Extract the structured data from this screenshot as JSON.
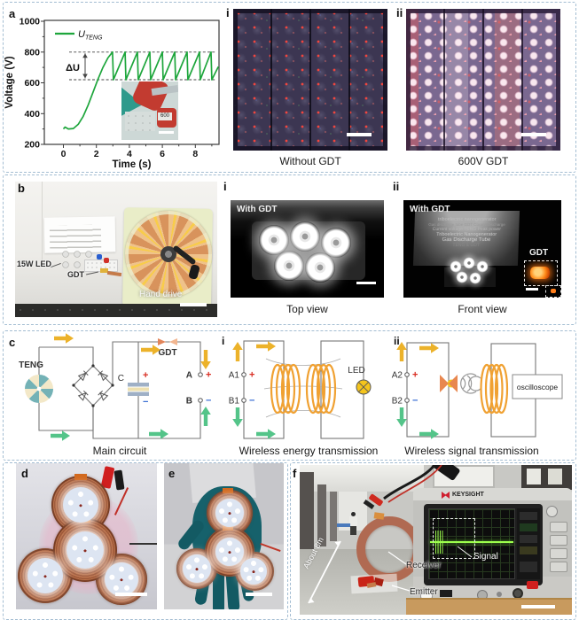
{
  "colors": {
    "section_border": "#a3bdd2",
    "trace_green": "#1ea63c",
    "arrow_yellow": "#ecb22a",
    "arrow_green": "#54c489",
    "gdt_orange": "#e2855a",
    "coil_copper": "#b97049",
    "plus_red": "#d93025",
    "minus_blue": "#3b6fd4"
  },
  "chart_data": {
    "type": "line",
    "title": "",
    "xlabel": "Time (s)",
    "ylabel": "Voltage (V)",
    "xlim": [
      0,
      9.6
    ],
    "ylim": [
      200,
      1000
    ],
    "xticks": [
      0,
      2,
      4,
      6,
      8
    ],
    "yticks": [
      1000,
      800,
      600,
      400,
      200
    ],
    "grid": false,
    "legend_position": "top-left",
    "legend": [
      {
        "name": "U_TENG",
        "main": "U",
        "sub": "TENG"
      }
    ],
    "series": [
      {
        "name": "U_TENG",
        "color": "#1ea63c",
        "points": [
          [
            0,
            300
          ],
          [
            0.1,
            312
          ],
          [
            0.3,
            300
          ],
          [
            0.6,
            303
          ],
          [
            0.9,
            330
          ],
          [
            1.2,
            382
          ],
          [
            1.5,
            455
          ],
          [
            1.8,
            540
          ],
          [
            2.1,
            625
          ],
          [
            2.4,
            700
          ],
          [
            2.7,
            762
          ],
          [
            2.98,
            800
          ],
          [
            3.03,
            620
          ],
          [
            3.74,
            800
          ],
          [
            3.79,
            620
          ],
          [
            4.49,
            800
          ],
          [
            4.54,
            620
          ],
          [
            5.24,
            800
          ],
          [
            5.29,
            620
          ],
          [
            6.0,
            800
          ],
          [
            6.05,
            620
          ],
          [
            6.75,
            800
          ],
          [
            6.8,
            620
          ],
          [
            7.5,
            800
          ],
          [
            7.55,
            620
          ],
          [
            8.25,
            800
          ],
          [
            8.3,
            620
          ],
          [
            8.95,
            800
          ],
          [
            9.0,
            620
          ],
          [
            9.4,
            705
          ]
        ]
      }
    ],
    "annotations": {
      "delta_label": "ΔU",
      "upper_dashed": 800,
      "lower_dashed": 620
    }
  },
  "panels": {
    "a": {
      "label": "a",
      "inset_text": "600"
    },
    "top_i": {
      "label": "i",
      "caption": "Without GDT"
    },
    "top_ii": {
      "label": "ii",
      "caption": "600V GDT"
    },
    "b": {
      "label": "b",
      "led_label": "15W LED",
      "gdt_label": "GDT",
      "hand_label": "Hand drive"
    },
    "mid_i": {
      "label": "i",
      "overlay": "With GDT",
      "caption": "Top view"
    },
    "mid_ii": {
      "label": "ii",
      "overlay": "With GDT",
      "gdt_label": "GDT",
      "caption": "Front view",
      "board_lines": [
        "triboelectric nanogenerator",
        "Gas discharge tube   GDT   Corona discharge",
        "Current voltage   TENG   Peak power",
        "Triboelectric Nanogenerator",
        "Gas Discharge Tube",
        "TENG & GDT"
      ]
    },
    "c": {
      "label": "c",
      "teng": "TENG",
      "cap_label": "C",
      "plus": "+",
      "minus": "−",
      "gdt": "GDT",
      "term_a": "A",
      "term_b": "B",
      "caption": "Main circuit"
    },
    "c_i": {
      "label": "i",
      "a1": "A1",
      "b1": "B1",
      "plus": "+",
      "minus": "−",
      "led": "LED",
      "caption": "Wireless energy transmission"
    },
    "c_ii": {
      "label": "ii",
      "a2": "A2",
      "b2": "B2",
      "plus": "+",
      "minus": "−",
      "osc": "oscilloscope",
      "caption": "Wireless signal transmission"
    },
    "d": {
      "label": "d"
    },
    "e": {
      "label": "e"
    },
    "f": {
      "label": "f",
      "distance": "About 8m",
      "signal": "Signal",
      "receiver": "Receiver",
      "emitter": "Emitter",
      "brand": "KEYSIGHT"
    }
  }
}
